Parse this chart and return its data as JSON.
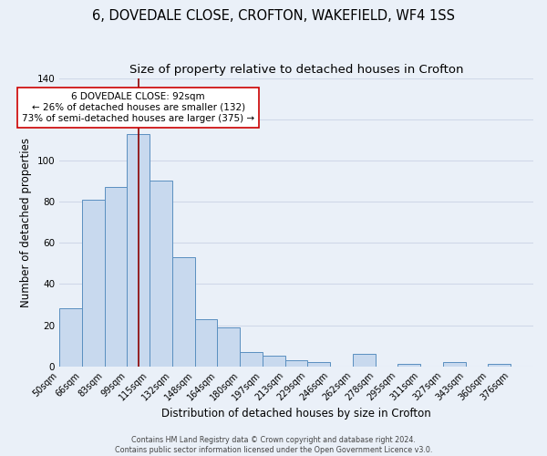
{
  "title1": "6, DOVEDALE CLOSE, CROFTON, WAKEFIELD, WF4 1SS",
  "title2": "Size of property relative to detached houses in Crofton",
  "xlabel": "Distribution of detached houses by size in Crofton",
  "ylabel": "Number of detached properties",
  "bin_labels": [
    "50sqm",
    "66sqm",
    "83sqm",
    "99sqm",
    "115sqm",
    "132sqm",
    "148sqm",
    "164sqm",
    "180sqm",
    "197sqm",
    "213sqm",
    "229sqm",
    "246sqm",
    "262sqm",
    "278sqm",
    "295sqm",
    "311sqm",
    "327sqm",
    "343sqm",
    "360sqm",
    "376sqm"
  ],
  "bar_heights": [
    28,
    81,
    87,
    113,
    90,
    53,
    23,
    19,
    7,
    5,
    3,
    2,
    0,
    6,
    0,
    1,
    0,
    2,
    0,
    1,
    0
  ],
  "bar_color": "#c8d9ee",
  "bar_edge_color": "#5a8fc0",
  "vline_pos": 3.5,
  "vline_color": "#8b0000",
  "annotation_text": "6 DOVEDALE CLOSE: 92sqm\n← 26% of detached houses are smaller (132)\n73% of semi-detached houses are larger (375) →",
  "annotation_box_color": "#ffffff",
  "annotation_box_edge": "#cc0000",
  "grid_color": "#d0d8e8",
  "background_color": "#eaf0f8",
  "footer": "Contains HM Land Registry data © Crown copyright and database right 2024.\nContains public sector information licensed under the Open Government Licence v3.0.",
  "ylim": [
    0,
    140
  ],
  "title1_fontsize": 10.5,
  "title2_fontsize": 9.5,
  "xlabel_fontsize": 8.5,
  "ylabel_fontsize": 8.5,
  "ann_fontsize": 7.5,
  "tick_fontsize": 7.0,
  "ytick_fontsize": 7.5,
  "footer_fontsize": 5.8
}
